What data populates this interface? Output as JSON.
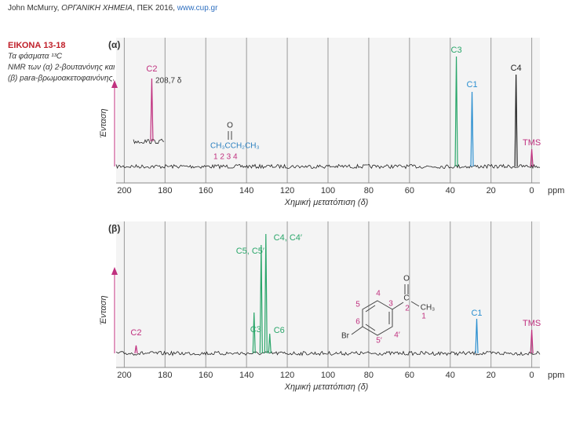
{
  "header": {
    "author": "John McMurry,",
    "book": "ΟΡΓΑΝΙΚΗ ΧΗΜΕΙΑ",
    "rest": ", ΠΕΚ 2016,",
    "url": "www.cup.gr"
  },
  "figure": {
    "label": "ΕΙΚΟΝΑ 13-18",
    "lines": [
      "Τα φάσματα ¹³C",
      "NMR των (α) 2-βουτανόνης και",
      "(β) para-βρωμοακετοφαινόνης."
    ]
  },
  "chart_data": [
    {
      "type": "spectrum",
      "panel": "(α)",
      "ylabel": "Ένταση",
      "xlabel": "Χημική μετατόπιση (δ)",
      "xunit": "ppm",
      "xlim": [
        204,
        -4
      ],
      "xticks": [
        200,
        180,
        160,
        140,
        120,
        100,
        80,
        60,
        40,
        20,
        0
      ],
      "ylim": [
        0,
        160
      ],
      "grid": true,
      "categories": [
        "C2",
        "C3",
        "C1",
        "C4",
        "TMS"
      ],
      "x": [
        186.5,
        37,
        29.3,
        7.7,
        0
      ],
      "values": [
        112,
        140,
        95,
        117,
        22
      ],
      "colors": [
        "#c0307f",
        "#2aa66a",
        "#2b8fd0",
        "#222222",
        "#c0307f"
      ],
      "annotations": [
        "208,7 δ",
        "O",
        "CH₃CCH₂CH₃",
        "1  2 3    4"
      ]
    },
    {
      "type": "spectrum",
      "panel": "(β)",
      "ylabel": "Ένταση",
      "xlabel": "Χημική μετατόπιση (δ)",
      "xunit": "ppm",
      "xlim": [
        204,
        -4
      ],
      "xticks": [
        200,
        180,
        160,
        140,
        120,
        100,
        80,
        60,
        40,
        20,
        0
      ],
      "ylim": [
        0,
        160
      ],
      "grid": true,
      "categories": [
        "C2",
        "C3",
        "C5, C5′",
        "C4, C4′",
        "C6",
        "C1",
        "TMS"
      ],
      "x": [
        194.2,
        136.3,
        132.8,
        130.5,
        128.6,
        27,
        0
      ],
      "values": [
        10,
        52,
        138,
        152,
        25,
        44,
        30
      ],
      "colors": [
        "#c0307f",
        "#2aa66a",
        "#2aa66a",
        "#2aa66a",
        "#2aa66a",
        "#2b8fd0",
        "#c0307f"
      ],
      "annotations": [
        "O",
        "C",
        "CH₃",
        "1",
        "2",
        "3",
        "4",
        "5",
        "6",
        "4′",
        "5′",
        "Br"
      ]
    }
  ]
}
